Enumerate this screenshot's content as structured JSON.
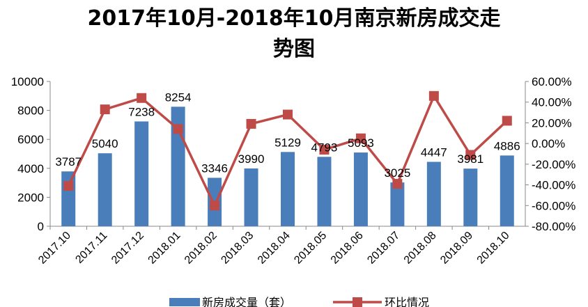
{
  "chart_data": {
    "type": "bar",
    "title_line1": "2017年10月-2018年10月南京新房成交走",
    "title_line2": "势图",
    "categories": [
      "2017.10",
      "2017.11",
      "2017.12",
      "2018.01",
      "2018.02",
      "2018.03",
      "2018.04",
      "2018.05",
      "2018.06",
      "2018.07",
      "2018.08",
      "2018.09",
      "2018.10"
    ],
    "series": [
      {
        "name": "新房成交量（套）",
        "type": "bar",
        "axis": "left",
        "color": "#4a7ebb",
        "values": [
          3787,
          5040,
          7238,
          8254,
          3346,
          3990,
          5129,
          4793,
          5093,
          3025,
          4447,
          3981,
          4886
        ],
        "labels": [
          "3787",
          "5040",
          "7238",
          "8254",
          "3346",
          "3990",
          "5129",
          "4793",
          "5093",
          "3025",
          "4447",
          "3981",
          "4886"
        ]
      },
      {
        "name": "环比情况",
        "type": "line",
        "axis": "right",
        "color": "#be4b48",
        "values": [
          -41,
          33,
          44,
          14,
          -60,
          19,
          28,
          -6,
          5,
          -39,
          46,
          -11,
          22
        ]
      }
    ],
    "y_left": {
      "ylim": [
        0,
        10000
      ],
      "ticks": [
        "0",
        "2000",
        "4000",
        "6000",
        "8000",
        "10000"
      ]
    },
    "y_right": {
      "ylim": [
        -80,
        60
      ],
      "ticks": [
        "-80.00%",
        "-60.00%",
        "-40.00%",
        "-20.00%",
        "0.00%",
        "20.00%",
        "40.00%",
        "60.00%"
      ]
    },
    "grid": false,
    "legend_position": "bottom"
  }
}
